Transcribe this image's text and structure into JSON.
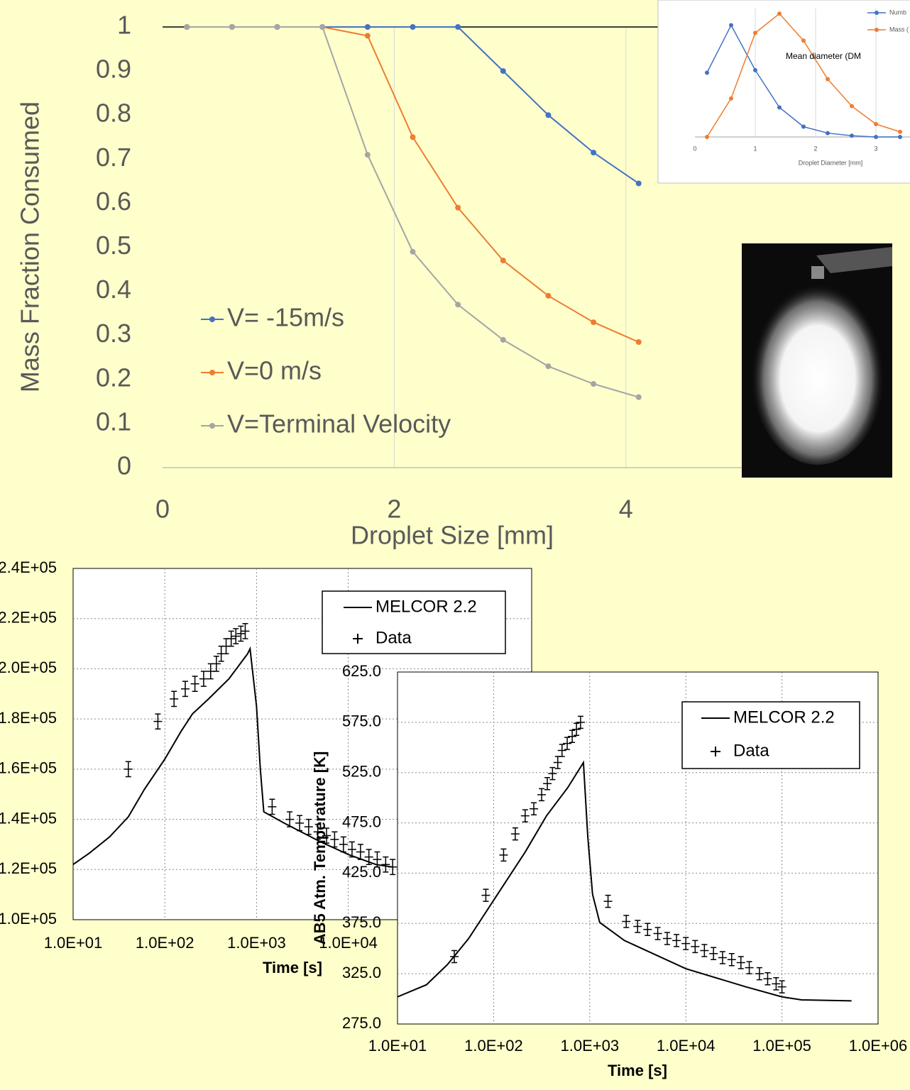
{
  "chart_data": [
    {
      "type": "line",
      "ylabel": "Mass Fraction Consumed",
      "xlabel": "Droplet Size [mm]",
      "x": [
        0.21,
        0.6,
        0.99,
        1.38,
        1.77,
        2.16,
        2.55,
        2.94,
        3.33,
        3.72,
        4.11
      ],
      "series": [
        {
          "name": "V= -15m/s",
          "color": "#4472c4",
          "marker": "circle",
          "values": [
            1,
            1,
            1,
            1,
            1,
            1,
            1,
            0.9,
            0.8,
            0.715,
            0.645
          ]
        },
        {
          "name": "V=0 m/s",
          "color": "#ed7d31",
          "marker": "circle",
          "values": [
            1,
            1,
            1,
            1,
            0.98,
            0.75,
            0.59,
            0.47,
            0.39,
            0.33,
            0.285
          ]
        },
        {
          "name": "V=Terminal Velocity",
          "color": "#a5a5a5",
          "marker": "circle",
          "values": [
            1,
            1,
            1,
            1,
            0.71,
            0.49,
            0.37,
            0.29,
            0.23,
            0.19,
            0.16
          ]
        }
      ],
      "xlim": [
        0,
        5
      ],
      "ylim": [
        0,
        1
      ],
      "xticks": [
        0,
        2,
        4
      ],
      "yticks": [
        0,
        0.1,
        0.2,
        0.3,
        0.4,
        0.5,
        0.6,
        0.7,
        0.8,
        0.9,
        1
      ],
      "grid": "x",
      "legend": "lower left"
    },
    {
      "type": "line",
      "title": "Mean diameter (DM",
      "xlabel": "Droplet Diameter [mm]",
      "x": [
        0.2,
        0.6,
        1.0,
        1.4,
        1.8,
        2.2,
        2.6,
        3.0,
        3.4
      ],
      "series": [
        {
          "name": "Numb",
          "color": "#4472c4",
          "marker": "circle",
          "values": [
            0.5,
            0.87,
            0.52,
            0.23,
            0.08,
            0.03,
            0.01,
            0,
            0
          ]
        },
        {
          "name": "Mass (",
          "color": "#ed7d31",
          "marker": "circle",
          "values": [
            0,
            0.3,
            0.81,
            0.96,
            0.75,
            0.45,
            0.24,
            0.1,
            0.04
          ]
        }
      ],
      "xlim": [
        0,
        3.6
      ],
      "ylim": [
        0,
        1
      ],
      "xticks": [
        0,
        1,
        2,
        3
      ],
      "grid": "x",
      "legend": "upper right"
    },
    {
      "type": "line",
      "xlabel": "Time [s]",
      "log_x": true,
      "grid": "both",
      "legend": "upper right",
      "xlim": [
        10,
        1000000
      ],
      "ylim": [
        100000,
        240000
      ],
      "xticks": [
        {
          "value": 10,
          "label": "1.0E+01"
        },
        {
          "value": 100,
          "label": "1.0E+02"
        },
        {
          "value": 1000,
          "label": "1.0E+03"
        },
        {
          "value": 10000,
          "label": "1.0E+04"
        }
      ],
      "yticks": [
        {
          "value": 100000,
          "label": "1.0E+05"
        },
        {
          "value": 120000,
          "label": "1.2E+05"
        },
        {
          "value": 140000,
          "label": "1.4E+05"
        },
        {
          "value": 160000,
          "label": "1.6E+05"
        },
        {
          "value": 180000,
          "label": "1.8E+05"
        },
        {
          "value": 200000,
          "label": "2.0E+05"
        },
        {
          "value": 220000,
          "label": "2.2E+05"
        },
        {
          "value": 240000,
          "label": "2.4E+05"
        }
      ],
      "series": [
        {
          "name": "MELCOR 2.2",
          "color": "#000000",
          "marker": "none",
          "x": [
            10,
            15,
            25,
            40,
            60,
            100,
            150,
            200,
            300,
            500,
            800,
            850,
            1000,
            1100,
            1200,
            2000,
            5000,
            10000,
            20000,
            30000
          ],
          "values": [
            122000,
            126500,
            133000,
            141000,
            152000,
            164000,
            175000,
            182000,
            188000,
            196000,
            206000,
            208000,
            185000,
            160000,
            143000,
            138500,
            131000,
            126000,
            122000,
            121000
          ]
        },
        {
          "name": "Data",
          "color": "#000000",
          "marker": "plus",
          "x": [
            40,
            84,
            126,
            167,
            213,
            265,
            316,
            365,
            412,
            466,
            529,
            595,
            675,
            753,
            1480,
            2300,
            2950,
            3700,
            4660,
            5800,
            7100,
            8870,
            11000,
            13600,
            16800,
            20700,
            25600,
            30500
          ],
          "values": [
            160000,
            179000,
            188000,
            192000,
            194000,
            196000,
            199000,
            202000,
            206000,
            209000,
            212000,
            213000,
            214000,
            215000,
            145000,
            140000,
            138500,
            137000,
            135000,
            133500,
            132000,
            130000,
            128000,
            127000,
            125000,
            124000,
            122000,
            121000
          ],
          "errors": [
            3000,
            3000,
            3000,
            3000,
            3000,
            3000,
            3000,
            3000,
            3000,
            3000,
            3000,
            3000,
            3000,
            3000,
            3000,
            3000,
            3000,
            3000,
            3000,
            3000,
            3000,
            3000,
            3000,
            3000,
            3000,
            3000,
            3000,
            3000
          ]
        }
      ]
    },
    {
      "type": "line",
      "xlabel": "Time [s]",
      "ylabel": "AB5 Atm. Temperature [K]",
      "log_x": true,
      "grid": "both",
      "legend": "upper right",
      "xlim": [
        10,
        1000000
      ],
      "ylim": [
        275,
        625
      ],
      "xticks": [
        {
          "value": 10,
          "label": "1.0E+01"
        },
        {
          "value": 100,
          "label": "1.0E+02"
        },
        {
          "value": 1000,
          "label": "1.0E+03"
        },
        {
          "value": 10000,
          "label": "1.0E+04"
        },
        {
          "value": 100000,
          "label": "1.0E+05"
        },
        {
          "value": 1000000,
          "label": "1.0E+06"
        }
      ],
      "yticks": [
        {
          "value": 275,
          "label": "275.0"
        },
        {
          "value": 325,
          "label": "325.0"
        },
        {
          "value": 375,
          "label": "375.0"
        },
        {
          "value": 425,
          "label": "425.0"
        },
        {
          "value": 475,
          "label": "475.0"
        },
        {
          "value": 525,
          "label": "525.0"
        },
        {
          "value": 575,
          "label": "575.0"
        },
        {
          "value": 625,
          "label": "625.0"
        }
      ],
      "series": [
        {
          "name": "MELCOR 2.2",
          "color": "#000000",
          "marker": "none",
          "x": [
            10,
            20,
            33,
            55,
            100,
            213,
            355,
            590,
            860,
            955,
            1070,
            1270,
            2300,
            10000,
            42000,
            100000,
            160000,
            530000
          ],
          "values": [
            302,
            314,
            334,
            360,
            398,
            446,
            482,
            510,
            535,
            461,
            404,
            376,
            358,
            330,
            312,
            302,
            299,
            298
          ]
        },
        {
          "name": "Data",
          "color": "#000000",
          "marker": "plus",
          "x": [
            39,
            83,
            127,
            168,
            213,
            262,
            316,
            362,
            410,
            465,
            515,
            583,
            657,
            728,
            803,
            1550,
            2400,
            3150,
            4000,
            5100,
            6400,
            8000,
            10000,
            12500,
            15600,
            19400,
            24100,
            30000,
            37400,
            45700,
            58300,
            71000,
            87000,
            100000
          ],
          "values": [
            342,
            403,
            443,
            464,
            482,
            489,
            503,
            514,
            524,
            535,
            547,
            554,
            561,
            568,
            575,
            397,
            377,
            372,
            369,
            365,
            360,
            358,
            355,
            352,
            348,
            345,
            341,
            339,
            336,
            331,
            325,
            320,
            315,
            312
          ],
          "errors": [
            6,
            6,
            6,
            6,
            6,
            6,
            6,
            6,
            6,
            6,
            6,
            6,
            6,
            6,
            6,
            6,
            6,
            6,
            6,
            6,
            6,
            6,
            6,
            6,
            6,
            6,
            6,
            6,
            6,
            6,
            6,
            6,
            6,
            6
          ]
        }
      ]
    }
  ]
}
